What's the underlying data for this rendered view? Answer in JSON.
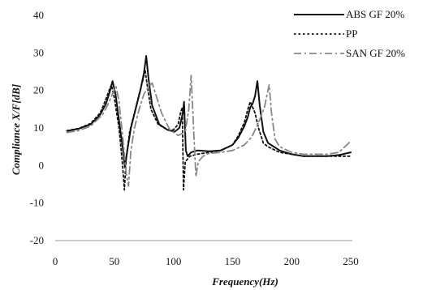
{
  "chart_data": {
    "type": "line",
    "xlabel": "Frequency(Hz)",
    "ylabel": "Compliance X/F[dB]",
    "xlim": [
      0,
      250
    ],
    "ylim": [
      -20,
      40
    ],
    "x_ticks": [
      "0",
      "50",
      "100",
      "150",
      "200",
      "250"
    ],
    "y_ticks": [
      "-20",
      "-10",
      "0",
      "10",
      "20",
      "30",
      "40"
    ],
    "grid": false,
    "legend_position": "top-right",
    "series": [
      {
        "name": "ABS GF 20%",
        "style": "solid",
        "color": "#111111",
        "x": [
          10,
          20,
          30,
          38,
          43,
          46,
          48.5,
          51,
          54,
          57,
          59,
          61,
          64,
          68,
          72,
          75,
          77,
          79,
          82,
          88,
          95,
          101,
          105,
          108,
          109,
          110.5,
          112,
          115,
          120,
          130,
          140,
          150,
          155,
          160,
          163,
          165,
          167,
          169,
          171,
          173,
          176,
          180,
          190,
          200,
          210,
          220,
          230,
          240,
          250
        ],
        "y": [
          9.2,
          9.8,
          11,
          13.5,
          16.5,
          19.5,
          22.5,
          19,
          12,
          5,
          -0.5,
          4,
          10,
          15,
          20,
          24.5,
          29.2,
          23,
          16,
          11,
          9.5,
          9,
          10,
          14,
          17,
          4,
          2.5,
          3.5,
          4,
          3.8,
          4,
          5.5,
          7.5,
          10.5,
          13,
          15.5,
          16.5,
          18.5,
          22.5,
          16,
          9,
          6,
          4,
          3,
          2.5,
          2.5,
          2.5,
          2.8,
          3.5
        ]
      },
      {
        "name": "PP",
        "style": "dotted",
        "color": "#111111",
        "x": [
          10,
          20,
          30,
          38,
          42,
          45,
          47.5,
          50,
          54,
          57,
          58.5,
          60,
          63,
          67,
          71,
          74,
          76,
          78,
          81,
          87,
          95,
          100,
          104,
          106,
          107.5,
          108.5,
          110,
          114,
          120,
          130,
          140,
          150,
          155,
          160,
          163,
          165,
          167,
          169,
          172,
          176,
          180,
          190,
          200,
          210,
          220,
          230,
          240,
          250
        ],
        "y": [
          9.3,
          9.9,
          11.2,
          14,
          17,
          19.5,
          21.5,
          18,
          10,
          0,
          -6.5,
          2,
          9,
          14,
          19,
          22.5,
          25.5,
          21,
          15,
          11,
          9.5,
          9.5,
          11,
          14,
          15.5,
          -6.5,
          1,
          2.5,
          3,
          3.5,
          4,
          5.5,
          8,
          11.5,
          15,
          17,
          15.5,
          14,
          10,
          6,
          5,
          3.5,
          3,
          2.5,
          2.5,
          2.5,
          2.5,
          2.5
        ]
      },
      {
        "name": "SAN GF 20%",
        "style": "dashdot",
        "color": "#888888",
        "x": [
          10,
          20,
          30,
          40,
          45,
          49,
          51.5,
          54,
          57,
          60,
          62,
          64,
          67,
          71,
          75,
          79,
          82,
          85,
          90,
          97,
          104,
          110,
          113,
          115,
          117,
          119,
          121,
          125,
          130,
          140,
          150,
          160,
          166,
          170,
          174,
          177,
          179,
          181,
          183,
          186,
          190,
          200,
          210,
          220,
          230,
          240,
          250
        ],
        "y": [
          8.8,
          9.3,
          10.5,
          13.5,
          16.5,
          19.5,
          21,
          17,
          8,
          -2,
          -5.5,
          4,
          10,
          15,
          19,
          21,
          22,
          19,
          14,
          9.5,
          8,
          9,
          15,
          24,
          10,
          -3,
          1,
          2.5,
          3.2,
          3.5,
          4,
          5.5,
          7.5,
          10,
          13,
          15.5,
          18.5,
          21.5,
          14,
          7,
          5,
          3.5,
          3,
          3,
          3,
          3.5,
          6.5
        ]
      }
    ]
  }
}
